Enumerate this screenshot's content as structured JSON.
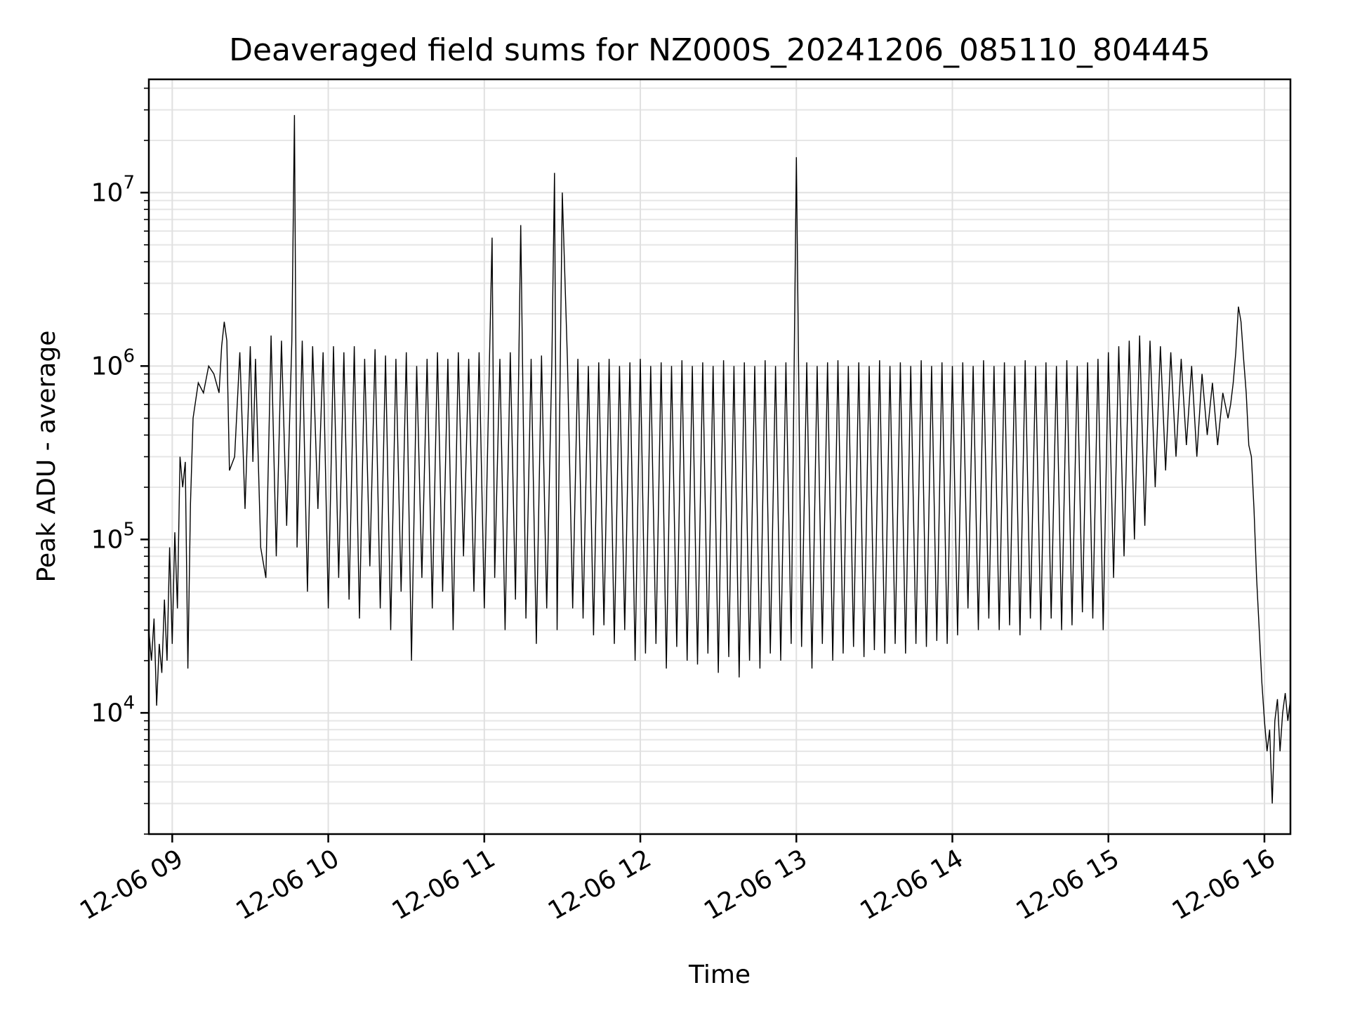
{
  "chart_data": {
    "type": "line",
    "title": "Deaveraged field sums for NZ000S_20241206_085110_804445",
    "xlabel": "Time",
    "ylabel": "Peak ADU - average",
    "yscale": "log",
    "xlim": [
      "2024-12-06 08:51",
      "2024-12-06 16:10"
    ],
    "ylim": [
      2000,
      45000000
    ],
    "grid": true,
    "legend": "none",
    "line_color": "#000000",
    "x_ticks": [
      {
        "time": "2024-12-06 09:00",
        "label": "12-06 09"
      },
      {
        "time": "2024-12-06 10:00",
        "label": "12-06 10"
      },
      {
        "time": "2024-12-06 11:00",
        "label": "12-06 11"
      },
      {
        "time": "2024-12-06 12:00",
        "label": "12-06 12"
      },
      {
        "time": "2024-12-06 13:00",
        "label": "12-06 13"
      },
      {
        "time": "2024-12-06 14:00",
        "label": "12-06 14"
      },
      {
        "time": "2024-12-06 15:00",
        "label": "12-06 15"
      },
      {
        "time": "2024-12-06 16:00",
        "label": "12-06 16"
      }
    ],
    "y_ticks": [
      {
        "value": 10000,
        "base": "10",
        "exp": "4"
      },
      {
        "value": 100000,
        "base": "10",
        "exp": "5"
      },
      {
        "value": 1000000,
        "base": "10",
        "exp": "6"
      },
      {
        "value": 10000000,
        "base": "10",
        "exp": "7"
      }
    ],
    "series": [
      {
        "x": [
          "2024-12-06 08:51",
          "2024-12-06 08:52",
          "2024-12-06 08:53",
          "2024-12-06 08:54",
          "2024-12-06 08:55",
          "2024-12-06 08:56",
          "2024-12-06 08:57",
          "2024-12-06 08:58",
          "2024-12-06 08:59",
          "2024-12-06 09:00",
          "2024-12-06 09:01",
          "2024-12-06 09:02",
          "2024-12-06 09:03",
          "2024-12-06 09:04",
          "2024-12-06 09:05",
          "2024-12-06 09:06",
          "2024-12-06 09:07",
          "2024-12-06 09:08",
          "2024-12-06 09:10",
          "2024-12-06 09:12",
          "2024-12-06 09:14",
          "2024-12-06 09:16",
          "2024-12-06 09:18",
          "2024-12-06 09:19",
          "2024-12-06 09:20",
          "2024-12-06 09:21",
          "2024-12-06 09:22",
          "2024-12-06 09:24",
          "2024-12-06 09:26",
          "2024-12-06 09:28",
          "2024-12-06 09:30",
          "2024-12-06 09:31",
          "2024-12-06 09:32",
          "2024-12-06 09:34",
          "2024-12-06 09:36",
          "2024-12-06 09:38",
          "2024-12-06 09:40",
          "2024-12-06 09:42",
          "2024-12-06 09:44",
          "2024-12-06 09:46",
          "2024-12-06 09:47",
          "2024-12-06 09:48",
          "2024-12-06 09:50",
          "2024-12-06 09:52",
          "2024-12-06 09:54",
          "2024-12-06 09:56",
          "2024-12-06 09:58",
          "2024-12-06 10:00",
          "2024-12-06 10:02",
          "2024-12-06 10:04",
          "2024-12-06 10:06",
          "2024-12-06 10:08",
          "2024-12-06 10:10",
          "2024-12-06 10:12",
          "2024-12-06 10:14",
          "2024-12-06 10:16",
          "2024-12-06 10:18",
          "2024-12-06 10:20",
          "2024-12-06 10:22",
          "2024-12-06 10:24",
          "2024-12-06 10:26",
          "2024-12-06 10:28",
          "2024-12-06 10:30",
          "2024-12-06 10:32",
          "2024-12-06 10:34",
          "2024-12-06 10:36",
          "2024-12-06 10:38",
          "2024-12-06 10:40",
          "2024-12-06 10:42",
          "2024-12-06 10:44",
          "2024-12-06 10:46",
          "2024-12-06 10:48",
          "2024-12-06 10:50",
          "2024-12-06 10:52",
          "2024-12-06 10:54",
          "2024-12-06 10:56",
          "2024-12-06 10:58",
          "2024-12-06 11:00",
          "2024-12-06 11:02",
          "2024-12-06 11:03",
          "2024-12-06 11:04",
          "2024-12-06 11:06",
          "2024-12-06 11:08",
          "2024-12-06 11:10",
          "2024-12-06 11:12",
          "2024-12-06 11:14",
          "2024-12-06 11:16",
          "2024-12-06 11:18",
          "2024-12-06 11:20",
          "2024-12-06 11:22",
          "2024-12-06 11:24",
          "2024-12-06 11:26",
          "2024-12-06 11:27",
          "2024-12-06 11:28",
          "2024-12-06 11:30",
          "2024-12-06 11:32",
          "2024-12-06 11:34",
          "2024-12-06 11:36",
          "2024-12-06 11:38",
          "2024-12-06 11:40",
          "2024-12-06 11:42",
          "2024-12-06 11:44",
          "2024-12-06 11:46",
          "2024-12-06 11:48",
          "2024-12-06 11:50",
          "2024-12-06 11:52",
          "2024-12-06 11:54",
          "2024-12-06 11:56",
          "2024-12-06 11:58",
          "2024-12-06 12:00",
          "2024-12-06 12:02",
          "2024-12-06 12:04",
          "2024-12-06 12:06",
          "2024-12-06 12:08",
          "2024-12-06 12:10",
          "2024-12-06 12:12",
          "2024-12-06 12:14",
          "2024-12-06 12:16",
          "2024-12-06 12:18",
          "2024-12-06 12:20",
          "2024-12-06 12:22",
          "2024-12-06 12:24",
          "2024-12-06 12:26",
          "2024-12-06 12:28",
          "2024-12-06 12:30",
          "2024-12-06 12:32",
          "2024-12-06 12:34",
          "2024-12-06 12:36",
          "2024-12-06 12:38",
          "2024-12-06 12:40",
          "2024-12-06 12:42",
          "2024-12-06 12:44",
          "2024-12-06 12:46",
          "2024-12-06 12:48",
          "2024-12-06 12:50",
          "2024-12-06 12:52",
          "2024-12-06 12:54",
          "2024-12-06 12:56",
          "2024-12-06 12:58",
          "2024-12-06 13:00",
          "2024-12-06 13:02",
          "2024-12-06 13:04",
          "2024-12-06 13:06",
          "2024-12-06 13:08",
          "2024-12-06 13:10",
          "2024-12-06 13:12",
          "2024-12-06 13:14",
          "2024-12-06 13:16",
          "2024-12-06 13:18",
          "2024-12-06 13:20",
          "2024-12-06 13:22",
          "2024-12-06 13:24",
          "2024-12-06 13:26",
          "2024-12-06 13:28",
          "2024-12-06 13:30",
          "2024-12-06 13:32",
          "2024-12-06 13:34",
          "2024-12-06 13:36",
          "2024-12-06 13:38",
          "2024-12-06 13:40",
          "2024-12-06 13:42",
          "2024-12-06 13:44",
          "2024-12-06 13:46",
          "2024-12-06 13:48",
          "2024-12-06 13:50",
          "2024-12-06 13:52",
          "2024-12-06 13:54",
          "2024-12-06 13:56",
          "2024-12-06 13:58",
          "2024-12-06 14:00",
          "2024-12-06 14:02",
          "2024-12-06 14:04",
          "2024-12-06 14:06",
          "2024-12-06 14:08",
          "2024-12-06 14:10",
          "2024-12-06 14:12",
          "2024-12-06 14:14",
          "2024-12-06 14:16",
          "2024-12-06 14:18",
          "2024-12-06 14:20",
          "2024-12-06 14:22",
          "2024-12-06 14:24",
          "2024-12-06 14:26",
          "2024-12-06 14:28",
          "2024-12-06 14:30",
          "2024-12-06 14:32",
          "2024-12-06 14:34",
          "2024-12-06 14:36",
          "2024-12-06 14:38",
          "2024-12-06 14:40",
          "2024-12-06 14:42",
          "2024-12-06 14:44",
          "2024-12-06 14:46",
          "2024-12-06 14:48",
          "2024-12-06 14:50",
          "2024-12-06 14:52",
          "2024-12-06 14:54",
          "2024-12-06 14:56",
          "2024-12-06 14:58",
          "2024-12-06 15:00",
          "2024-12-06 15:02",
          "2024-12-06 15:04",
          "2024-12-06 15:06",
          "2024-12-06 15:08",
          "2024-12-06 15:10",
          "2024-12-06 15:12",
          "2024-12-06 15:14",
          "2024-12-06 15:16",
          "2024-12-06 15:18",
          "2024-12-06 15:20",
          "2024-12-06 15:22",
          "2024-12-06 15:24",
          "2024-12-06 15:26",
          "2024-12-06 15:28",
          "2024-12-06 15:30",
          "2024-12-06 15:32",
          "2024-12-06 15:34",
          "2024-12-06 15:36",
          "2024-12-06 15:38",
          "2024-12-06 15:40",
          "2024-12-06 15:42",
          "2024-12-06 15:44",
          "2024-12-06 15:46",
          "2024-12-06 15:47",
          "2024-12-06 15:48",
          "2024-12-06 15:49",
          "2024-12-06 15:50",
          "2024-12-06 15:51",
          "2024-12-06 15:52",
          "2024-12-06 15:53",
          "2024-12-06 15:54",
          "2024-12-06 15:55",
          "2024-12-06 15:56",
          "2024-12-06 15:57",
          "2024-12-06 15:58",
          "2024-12-06 15:59",
          "2024-12-06 16:00",
          "2024-12-06 16:01",
          "2024-12-06 16:02",
          "2024-12-06 16:03",
          "2024-12-06 16:04",
          "2024-12-06 16:05",
          "2024-12-06 16:06",
          "2024-12-06 16:07",
          "2024-12-06 16:08",
          "2024-12-06 16:09",
          "2024-12-06 16:10"
        ],
        "y": [
          30000,
          20000,
          35000,
          11000,
          25000,
          17000,
          45000,
          20000,
          90000,
          25000,
          110000,
          40000,
          300000,
          200000,
          280000,
          18000,
          160000,
          500000,
          800000,
          700000,
          1000000,
          900000,
          700000,
          1300000,
          1800000,
          1400000,
          250000,
          300000,
          1200000,
          150000,
          1300000,
          280000,
          1100000,
          90000,
          60000,
          1500000,
          80000,
          1400000,
          120000,
          1400000,
          28000000,
          90000,
          1400000,
          50000,
          1300000,
          150000,
          1200000,
          40000,
          1300000,
          60000,
          1200000,
          45000,
          1300000,
          35000,
          1100000,
          70000,
          1250000,
          40000,
          1150000,
          30000,
          1100000,
          50000,
          1200000,
          20000,
          1000000,
          60000,
          1100000,
          40000,
          1200000,
          50000,
          1100000,
          30000,
          1200000,
          80000,
          1100000,
          50000,
          1200000,
          40000,
          1100000,
          5500000,
          60000,
          1100000,
          30000,
          1200000,
          45000,
          6500000,
          35000,
          1100000,
          25000,
          1150000,
          40000,
          1100000,
          13000000,
          30000,
          10000000,
          1050000,
          40000,
          1100000,
          35000,
          1000000,
          28000,
          1050000,
          32000,
          1100000,
          25000,
          1000000,
          30000,
          1050000,
          20000,
          1100000,
          22000,
          1000000,
          25000,
          1050000,
          18000,
          1000000,
          24000,
          1080000,
          20000,
          1000000,
          19000,
          1050000,
          22000,
          1000000,
          17000,
          1080000,
          21000,
          1000000,
          16000,
          1050000,
          20000,
          1000000,
          18000,
          1080000,
          22000,
          1000000,
          20000,
          1050000,
          25000,
          16000000,
          24000,
          1050000,
          18000,
          1000000,
          25000,
          1050000,
          20000,
          1080000,
          22000,
          1000000,
          24000,
          1050000,
          21000,
          1000000,
          23000,
          1080000,
          22000,
          1000000,
          25000,
          1050000,
          22000,
          1000000,
          25000,
          1080000,
          24000,
          1000000,
          26000,
          1050000,
          25000,
          1000000,
          28000,
          1050000,
          40000,
          1000000,
          30000,
          1080000,
          35000,
          1000000,
          30000,
          1050000,
          32000,
          1000000,
          28000,
          1080000,
          35000,
          1000000,
          30000,
          1050000,
          35000,
          1000000,
          30000,
          1080000,
          32000,
          1000000,
          38000,
          1050000,
          35000,
          1100000,
          30000,
          1200000,
          60000,
          1300000,
          80000,
          1400000,
          100000,
          1500000,
          120000,
          1400000,
          200000,
          1300000,
          250000,
          1200000,
          300000,
          1100000,
          350000,
          1000000,
          300000,
          900000,
          400000,
          800000,
          350000,
          700000,
          500000,
          600000,
          800000,
          1200000,
          2200000,
          1800000,
          1100000,
          700000,
          350000,
          300000,
          150000,
          60000,
          30000,
          15000,
          9000,
          6000,
          8000,
          3000,
          9000,
          12000,
          6000,
          10000,
          13000,
          9000,
          12000
        ]
      }
    ]
  }
}
